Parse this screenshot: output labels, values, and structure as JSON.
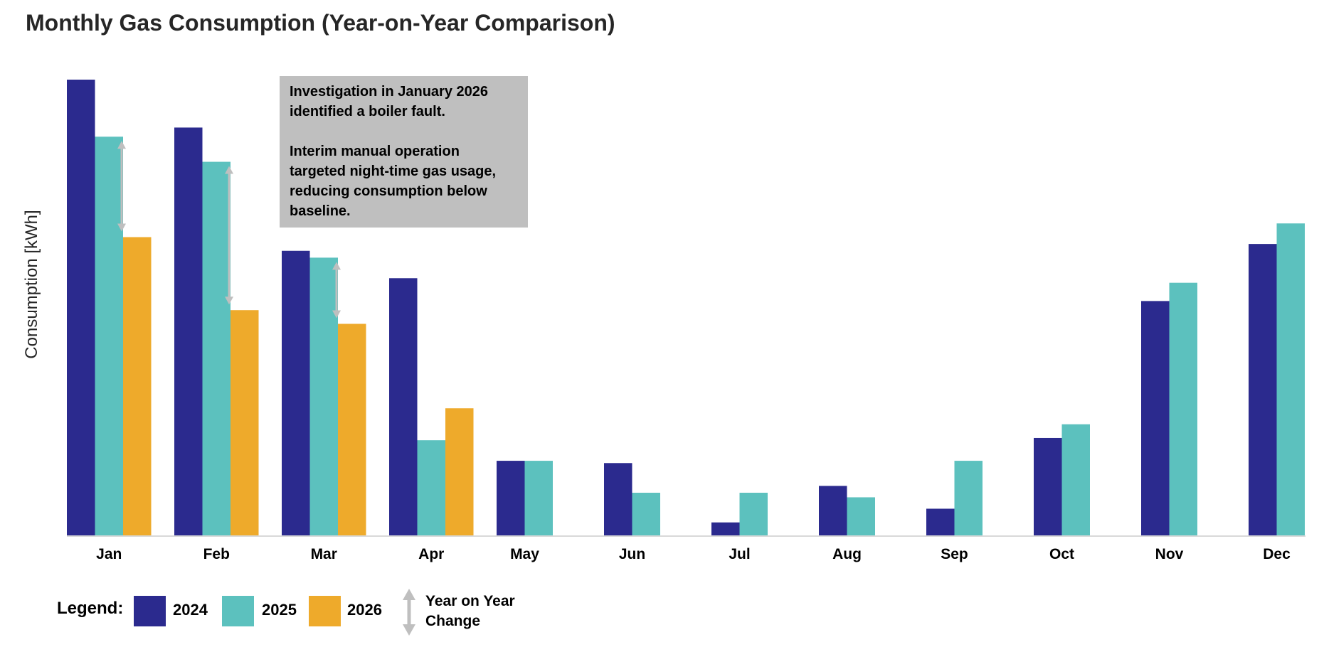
{
  "chart_data": {
    "type": "bar",
    "title": "Monthly Gas Consumption (Year-on-Year Comparison)",
    "xlabel": "",
    "ylabel": "Consumption [kWh]",
    "categories": [
      "Jan",
      "Feb",
      "Mar",
      "Apr",
      "May",
      "Jun",
      "Jul",
      "Aug",
      "Sep",
      "Oct",
      "Nov",
      "Dec"
    ],
    "series": [
      {
        "name": "2024",
        "color": "#2b2a8e",
        "values": [
          100,
          89.5,
          62.5,
          56.5,
          16.5,
          16,
          3,
          11,
          6,
          21.5,
          51.5,
          64
        ]
      },
      {
        "name": "2025",
        "color": "#5cc1be",
        "values": [
          87.5,
          82,
          61,
          21,
          16.5,
          9.5,
          9.5,
          8.5,
          16.5,
          24.5,
          55.5,
          68.5
        ]
      },
      {
        "name": "2026",
        "color": "#eeaa2b",
        "values": [
          65.5,
          49.5,
          46.5,
          28,
          null,
          null,
          null,
          null,
          null,
          null,
          null,
          null
        ]
      }
    ],
    "ylim": [
      0,
      100
    ],
    "grid": false,
    "yoy_change_arrows": [
      "Jan",
      "Feb",
      "Mar"
    ],
    "legend_position": "bottom-left",
    "annotation": {
      "lines_p1": "Investigation in January 2026 identified a boiler fault.",
      "lines_p2": "Interim manual operation targeted night-time gas usage, reducing consumption below baseline."
    }
  },
  "legend": {
    "title": "Legend:",
    "items": [
      {
        "label": "2024",
        "color": "#2b2a8e"
      },
      {
        "label": "2025",
        "color": "#5cc1be"
      },
      {
        "label": "2026",
        "color": "#eeaa2b"
      }
    ],
    "arrow_label": "Year on Year Change",
    "arrow_color": "#bfbfbf"
  },
  "colors": {
    "annotation_bg": "#bfbfbf",
    "axis": "#d9d9d9"
  }
}
